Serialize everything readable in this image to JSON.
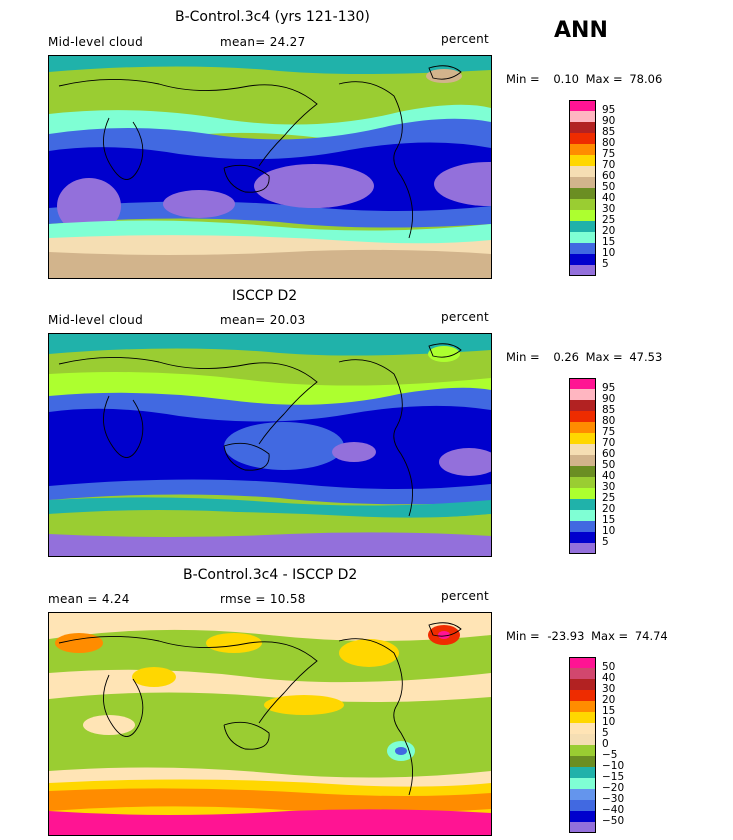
{
  "season": "ANN",
  "panels": [
    {
      "title": "B-Control.3c4 (yrs 121-130)",
      "left_label": "Mid-level cloud",
      "mid_label": "mean=  24.27",
      "right_label": "percent",
      "min_label": "Min =",
      "min_value": "0.10",
      "max_label": "Max =",
      "max_value": "78.06",
      "colorbar_labels": [
        "95",
        "90",
        "85",
        "80",
        "75",
        "70",
        "60",
        "50",
        "40",
        "30",
        "25",
        "20",
        "15",
        "10",
        "5"
      ],
      "colors": [
        "#ff1493",
        "#ffb6c1",
        "#b22222",
        "#ee2c00",
        "#ff8c00",
        "#ffd700",
        "#f5deb3",
        "#d2b48c",
        "#6b8e23",
        "#9acd32",
        "#adff2f",
        "#20b2aa",
        "#7fffd4",
        "#4169e1",
        "#0000cd",
        "#9370db"
      ]
    },
    {
      "title": "ISCCP D2",
      "left_label": "Mid-level cloud",
      "mid_label": "mean=  20.03",
      "right_label": "percent",
      "min_label": "Min =",
      "min_value": "0.26",
      "max_label": "Max =",
      "max_value": "47.53",
      "colorbar_labels": [
        "95",
        "90",
        "85",
        "80",
        "75",
        "70",
        "60",
        "50",
        "40",
        "30",
        "25",
        "20",
        "15",
        "10",
        "5"
      ],
      "colors": [
        "#ff1493",
        "#ffb6c1",
        "#b22222",
        "#ee2c00",
        "#ff8c00",
        "#ffd700",
        "#f5deb3",
        "#d2b48c",
        "#6b8e23",
        "#9acd32",
        "#adff2f",
        "#20b2aa",
        "#7fffd4",
        "#4169e1",
        "#0000cd",
        "#9370db"
      ]
    },
    {
      "title": "B-Control.3c4 - ISCCP D2",
      "left_label": "mean =    4.24",
      "mid_label": "rmse =   10.58",
      "right_label": "percent",
      "min_label": "Min =",
      "min_value": "-23.93",
      "max_label": "Max =",
      "max_value": "74.74",
      "colorbar_labels": [
        "50",
        "40",
        "30",
        "20",
        "15",
        "10",
        "5",
        "0",
        "−5",
        "−10",
        "−15",
        "−20",
        "−30",
        "−40",
        "−50"
      ],
      "colors": [
        "#ff1493",
        "#d2476e",
        "#b22222",
        "#ee2c00",
        "#ff8c00",
        "#ffd700",
        "#ffe4b5",
        "#f5deb3",
        "#9acd32",
        "#6b8e23",
        "#20b2aa",
        "#7fffd4",
        "#6495ed",
        "#4169e1",
        "#0000cd",
        "#9370db"
      ]
    }
  ],
  "chart_data": [
    {
      "type": "heatmap",
      "title": "B-Control.3c4 (yrs 121-130)",
      "variable": "Mid-level cloud",
      "units": "percent",
      "mean": 24.27,
      "min": 0.1,
      "max": 78.06,
      "contour_levels": [
        5,
        10,
        15,
        20,
        25,
        30,
        40,
        50,
        60,
        70,
        75,
        80,
        85,
        90,
        95
      ]
    },
    {
      "type": "heatmap",
      "title": "ISCCP D2",
      "variable": "Mid-level cloud",
      "units": "percent",
      "mean": 20.03,
      "min": 0.26,
      "max": 47.53,
      "contour_levels": [
        5,
        10,
        15,
        20,
        25,
        30,
        40,
        50,
        60,
        70,
        75,
        80,
        85,
        90,
        95
      ]
    },
    {
      "type": "heatmap",
      "title": "B-Control.3c4 - ISCCP D2",
      "units": "percent",
      "mean": 4.24,
      "rmse": 10.58,
      "min": -23.93,
      "max": 74.74,
      "contour_levels": [
        -50,
        -40,
        -30,
        -20,
        -15,
        -10,
        -5,
        0,
        5,
        10,
        15,
        20,
        30,
        40,
        50
      ]
    }
  ]
}
